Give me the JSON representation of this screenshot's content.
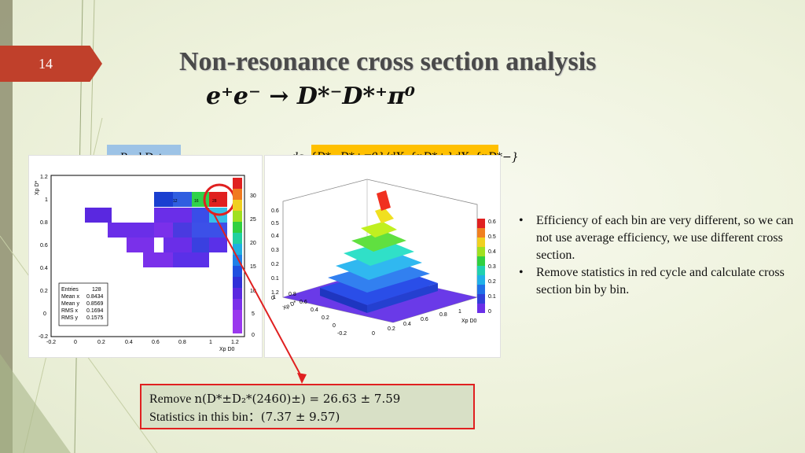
{
  "slide": {
    "number": "14",
    "title": "Non-resonance cross section analysis",
    "formula": "e⁺e⁻ → D*⁻D*⁺π⁰"
  },
  "labels": {
    "real_data": "Real Data",
    "efficiency": "dε_{D*−D*+π0}/dX_{pD*+}dX_{pD*−}"
  },
  "plot_left": {
    "x_axis_title": "Xp D0",
    "y_axis_title": "Xp D*",
    "x_ticks": [
      "-0.2",
      "0",
      "0.2",
      "0.4",
      "0.6",
      "0.8",
      "1",
      "1.2"
    ],
    "y_ticks": [
      "-0.2",
      "0",
      "0.2",
      "0.4",
      "0.6",
      "0.8",
      "1",
      "1.2"
    ],
    "z_ticks": [
      "0",
      "5",
      "10",
      "15",
      "20",
      "25",
      "30"
    ],
    "stats": [
      {
        "label": "Entries",
        "value": "128"
      },
      {
        "label": "Mean x",
        "value": "0.8434"
      },
      {
        "label": "Mean y",
        "value": "0.8569"
      },
      {
        "label": "RMS x",
        "value": "0.1694"
      },
      {
        "label": "RMS y",
        "value": "0.1575"
      }
    ],
    "cell_labels": [
      "12",
      "16",
      "28"
    ]
  },
  "plot_right": {
    "x_axis_title": "Xp D0",
    "y_axis_title": "Xp D*",
    "z_ticks": [
      "0",
      "0.1",
      "0.2",
      "0.3",
      "0.4",
      "0.5",
      "0.6"
    ],
    "palette_ticks": [
      "0",
      "0.1",
      "0.2",
      "0.3",
      "0.4",
      "0.5",
      "0.6"
    ],
    "x_ticks": [
      "0",
      "0.2",
      "0.4",
      "0.6",
      "0.8",
      "1"
    ],
    "y_ticks": [
      "-0.2",
      "0",
      "0.2",
      "0.4",
      "0.6",
      "0.8",
      "1",
      "1.2"
    ]
  },
  "bullets": [
    "Efficiency of each bin are very different, so we can not use average efficiency, we use different cross section.",
    "Remove statistics in red cycle and calculate cross section bin by bin."
  ],
  "note": {
    "line1_prefix": "Remove ",
    "line1_math": "n(D*±D₂*(2460)±) = 26.63 ± 7.59",
    "line2_prefix": "Statistics in this bin：",
    "line2_math": "(7.37 ± 9.57)"
  },
  "colors": {
    "slide_number_bg": "#c0402b",
    "real_label_bg": "#9dc3e6",
    "eff_label_bg": "#ffc000",
    "highlight_red": "#e02020"
  }
}
